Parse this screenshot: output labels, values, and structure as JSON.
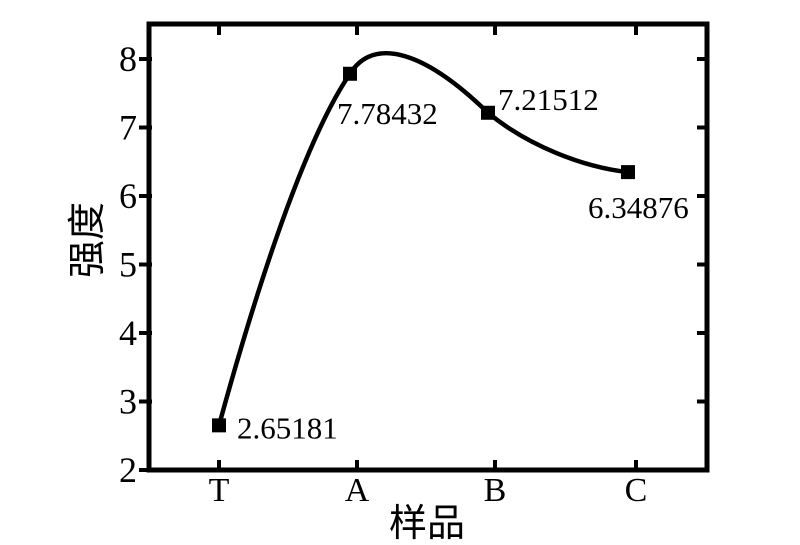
{
  "figure": {
    "background": "#ffffff",
    "foreground": "#000000"
  },
  "chart_data": {
    "type": "line",
    "title": "",
    "categories": [
      "T",
      "A",
      "B",
      "C"
    ],
    "values": [
      2.65181,
      7.78432,
      7.21512,
      6.34876
    ],
    "point_labels": [
      "2.65181",
      "7.78432",
      "7.21512",
      "6.34876"
    ],
    "xlabel": "样品",
    "ylabel": "强度",
    "ylim": [
      2,
      8
    ],
    "yticks": [
      2,
      3,
      4,
      5,
      6,
      7,
      8
    ],
    "grid": false,
    "legend": "none",
    "curve": "smooth-spline",
    "marker": "filled-square",
    "line_color": "#000000",
    "marker_color": "#000000",
    "axis_color": "#000000"
  }
}
